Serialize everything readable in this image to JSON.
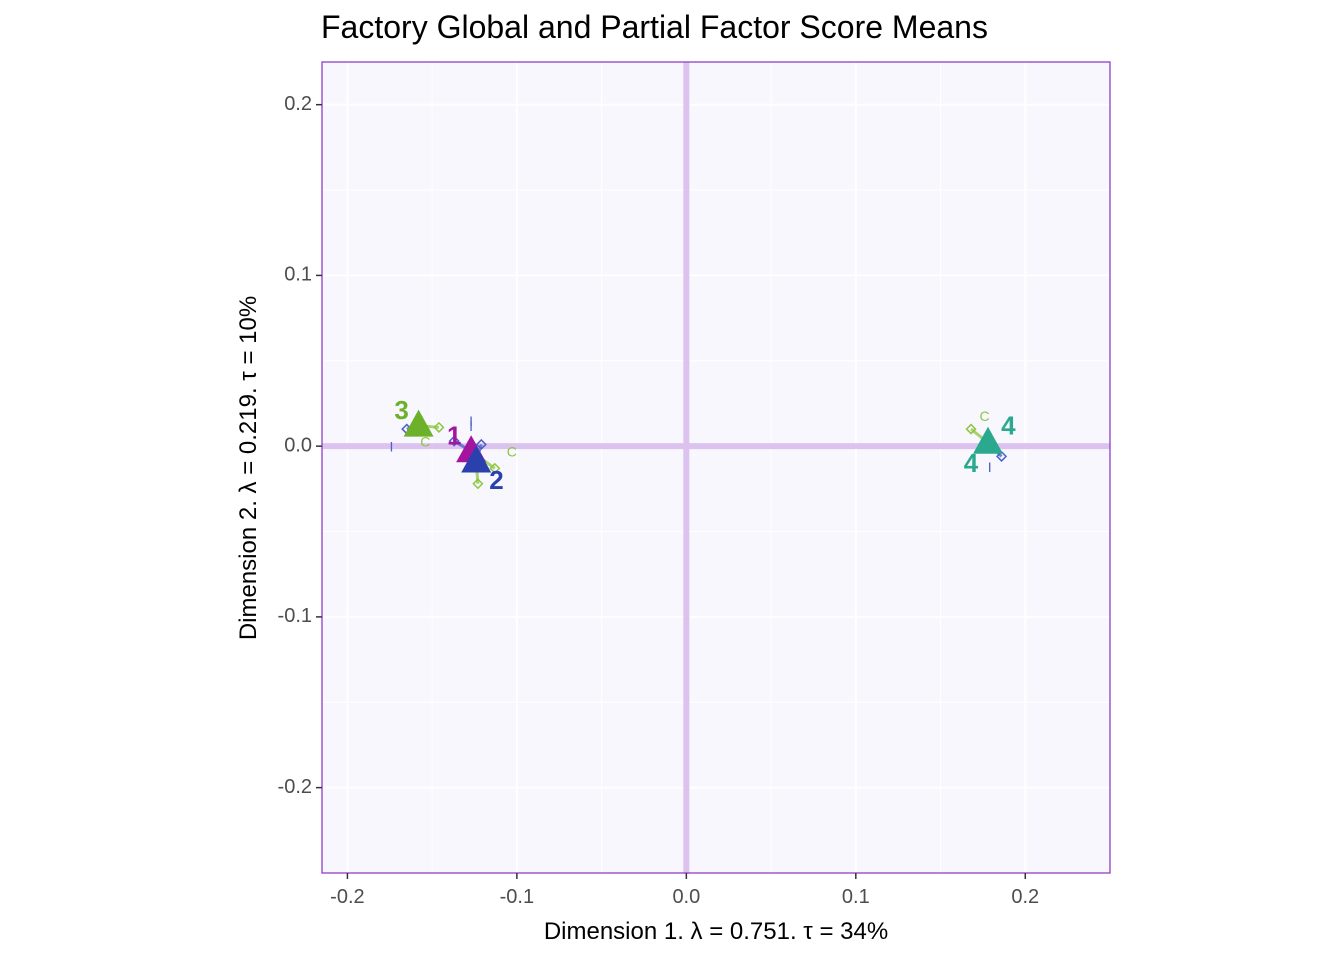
{
  "chart_data": {
    "type": "scatter",
    "title": "Factory Global and Partial Factor Score Means",
    "xlabel": "Dimension 1.   λ = 0.751.  τ = 34%",
    "ylabel": "Dimension 2.   λ = 0.219.  τ = 10%",
    "xlim": [
      -0.215,
      0.25
    ],
    "ylim": [
      -0.25,
      0.225
    ],
    "x_ticks": [
      -0.2,
      -0.1,
      0.0,
      0.1,
      0.2
    ],
    "x_tick_labels": [
      "-0.2",
      "-0.1",
      "0.0",
      "0.1",
      "0.2"
    ],
    "y_ticks": [
      -0.2,
      -0.1,
      0.0,
      0.1,
      0.2
    ],
    "y_tick_labels": [
      "-0.2",
      "-0.1",
      "0.0",
      "0.1",
      "0.2"
    ],
    "grid": true,
    "origin_lines": true,
    "colors": {
      "panel_bg": "#f8f7fe",
      "panel_border": "#8e3fc9",
      "grid": "#ffffff",
      "origin_line": "#dcc3ef",
      "tick_text": "#4d4d4d",
      "partial_c": "#8cc63f",
      "partial_i": "#4a5fc9"
    },
    "groups": [
      {
        "name": "1",
        "color": "#a3159f",
        "x": -0.127,
        "y": -0.003,
        "label_x": -0.137,
        "label_y": 0.005,
        "partials": [
          {
            "label": "C",
            "x": -0.113,
            "y": -0.013,
            "label_x": -0.103,
            "label_y": -0.004
          },
          {
            "label": "I",
            "x": -0.137,
            "y": 0.003,
            "label_x": -0.127,
            "label_y": 0.011
          }
        ]
      },
      {
        "name": "2",
        "color": "#2a41ad",
        "x": -0.124,
        "y": -0.009,
        "label_x": -0.112,
        "label_y": -0.021,
        "partials": [
          {
            "label": "C",
            "x": -0.123,
            "y": -0.022,
            "label_x": -0.124,
            "label_y": -0.013
          },
          {
            "label": "I",
            "x": -0.121,
            "y": 0.001,
            "label_x": -0.127,
            "label_y": 0.014
          }
        ]
      },
      {
        "name": "3",
        "color": "#6db12a",
        "x": -0.158,
        "y": 0.012,
        "label_x": -0.168,
        "label_y": 0.02,
        "partials": [
          {
            "label": "C",
            "x": -0.146,
            "y": 0.011,
            "label_x": -0.154,
            "label_y": 0.002
          },
          {
            "label": "I",
            "x": -0.165,
            "y": 0.01,
            "label_x": -0.174,
            "label_y": -0.001
          }
        ]
      },
      {
        "name": "4",
        "color": "#2aa98e",
        "x": 0.178,
        "y": 0.002,
        "label_x": 0.19,
        "label_y": 0.011,
        "label2_x": 0.168,
        "label2_y": -0.011,
        "partials": [
          {
            "label": "C",
            "x": 0.168,
            "y": 0.01,
            "label_x": 0.176,
            "label_y": 0.017
          },
          {
            "label": "I",
            "x": 0.186,
            "y": -0.006,
            "label_x": 0.179,
            "label_y": -0.013
          }
        ]
      }
    ]
  }
}
